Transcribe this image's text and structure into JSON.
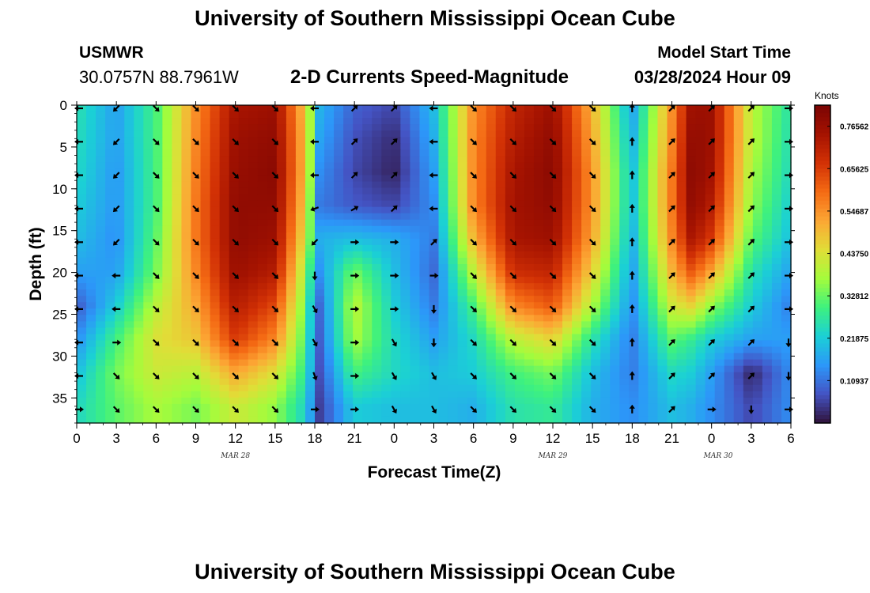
{
  "header": {
    "title": "University of Southern Mississippi Ocean Cube",
    "station": "USMWR",
    "coords": "30.0757N  88.7961W",
    "subtitle": "2-D Currents Speed-Magnitude",
    "start_label": "Model Start Time",
    "start_value": "03/28/2024 Hour 09"
  },
  "footer": {
    "title": "University of Southern Mississippi Ocean Cube"
  },
  "colors": {
    "scale": [
      "#30123b",
      "#4454c4",
      "#2c97f9",
      "#1bd0d5",
      "#3ef17e",
      "#a4fc3c",
      "#e1dd37",
      "#fca634",
      "#f46a14",
      "#d23105",
      "#a51301",
      "#7a0403"
    ]
  },
  "chart_data": {
    "type": "heatmap",
    "title": "2-D Currents Speed-Magnitude",
    "xlabel": "Forecast Time(Z)",
    "ylabel": "Depth (ft)",
    "x_ticks": [
      "0",
      "3",
      "6",
      "9",
      "12",
      "15",
      "18",
      "21",
      "0",
      "3",
      "6",
      "9",
      "12",
      "15",
      "18",
      "21",
      "0",
      "3",
      "6"
    ],
    "x_dates": [
      "MAR 28",
      "MAR 29",
      "MAR 30"
    ],
    "y_ticks": [
      "0",
      "5",
      "10",
      "15",
      "20",
      "25",
      "30",
      "35"
    ],
    "x_range": [
      0,
      54
    ],
    "y_range": [
      0,
      38
    ],
    "colorbar": {
      "title": "Knots",
      "range": [
        0,
        0.82
      ],
      "labels": [
        "0.76562",
        "0.65625",
        "0.54687",
        "0.43750",
        "0.32812",
        "0.21875",
        "0.10937"
      ]
    },
    "depths": [
      0,
      4,
      8,
      12,
      16,
      20,
      24,
      28,
      32,
      36
    ],
    "times": [
      0,
      3,
      6,
      9,
      12,
      15,
      17.5,
      18,
      21,
      24,
      27,
      30,
      33,
      36,
      39,
      42,
      45,
      46.5,
      48,
      51,
      54
    ],
    "speed": [
      [
        0.26,
        0.16,
        0.3,
        0.55,
        0.74,
        0.76,
        0.45,
        0.2,
        0.09,
        0.06,
        0.2,
        0.55,
        0.7,
        0.76,
        0.5,
        0.16,
        0.55,
        0.76,
        0.76,
        0.4,
        0.26
      ],
      [
        0.25,
        0.16,
        0.3,
        0.56,
        0.76,
        0.78,
        0.46,
        0.18,
        0.07,
        0.03,
        0.18,
        0.56,
        0.72,
        0.78,
        0.52,
        0.18,
        0.56,
        0.78,
        0.76,
        0.4,
        0.25
      ],
      [
        0.24,
        0.15,
        0.3,
        0.57,
        0.77,
        0.79,
        0.46,
        0.15,
        0.06,
        0.02,
        0.16,
        0.56,
        0.74,
        0.79,
        0.54,
        0.2,
        0.58,
        0.79,
        0.75,
        0.38,
        0.24
      ],
      [
        0.22,
        0.15,
        0.3,
        0.58,
        0.78,
        0.78,
        0.44,
        0.12,
        0.08,
        0.06,
        0.14,
        0.56,
        0.75,
        0.78,
        0.54,
        0.2,
        0.58,
        0.78,
        0.72,
        0.36,
        0.22
      ],
      [
        0.2,
        0.14,
        0.32,
        0.58,
        0.78,
        0.76,
        0.4,
        0.18,
        0.2,
        0.18,
        0.12,
        0.5,
        0.74,
        0.76,
        0.52,
        0.18,
        0.56,
        0.74,
        0.66,
        0.32,
        0.2
      ],
      [
        0.16,
        0.16,
        0.34,
        0.56,
        0.76,
        0.72,
        0.34,
        0.12,
        0.34,
        0.2,
        0.1,
        0.4,
        0.68,
        0.7,
        0.46,
        0.16,
        0.5,
        0.62,
        0.52,
        0.26,
        0.16
      ],
      [
        0.08,
        0.22,
        0.4,
        0.52,
        0.72,
        0.64,
        0.3,
        0.06,
        0.4,
        0.22,
        0.12,
        0.3,
        0.56,
        0.62,
        0.38,
        0.14,
        0.42,
        0.46,
        0.36,
        0.22,
        0.12
      ],
      [
        0.14,
        0.3,
        0.44,
        0.48,
        0.66,
        0.56,
        0.28,
        0.05,
        0.38,
        0.24,
        0.16,
        0.24,
        0.4,
        0.46,
        0.26,
        0.12,
        0.32,
        0.28,
        0.22,
        0.16,
        0.16
      ],
      [
        0.2,
        0.34,
        0.42,
        0.4,
        0.52,
        0.44,
        0.26,
        0.04,
        0.3,
        0.24,
        0.2,
        0.22,
        0.3,
        0.34,
        0.2,
        0.12,
        0.24,
        0.22,
        0.16,
        0.02,
        0.14
      ],
      [
        0.24,
        0.32,
        0.38,
        0.34,
        0.42,
        0.36,
        0.22,
        0.03,
        0.22,
        0.2,
        0.2,
        0.18,
        0.26,
        0.28,
        0.18,
        0.14,
        0.2,
        0.18,
        0.14,
        0.06,
        0.14
      ]
    ],
    "arrow_times": [
      0,
      3,
      6,
      9,
      12,
      15,
      18,
      21,
      24,
      27,
      30,
      33,
      36,
      39,
      42,
      45,
      48,
      51,
      54
    ],
    "arrow_depths": [
      0,
      4,
      8,
      12,
      16,
      20,
      24,
      28,
      32,
      36
    ],
    "arrow_dirs_deg": [
      [
        180,
        225,
        315,
        315,
        315,
        315,
        180,
        45,
        45,
        180,
        315,
        315,
        315,
        315,
        90,
        45,
        45,
        45,
        0
      ],
      [
        180,
        225,
        315,
        315,
        315,
        315,
        180,
        45,
        45,
        180,
        315,
        315,
        315,
        315,
        90,
        45,
        45,
        45,
        0
      ],
      [
        180,
        225,
        315,
        315,
        315,
        315,
        180,
        45,
        45,
        180,
        315,
        315,
        315,
        315,
        90,
        45,
        45,
        45,
        0
      ],
      [
        180,
        225,
        315,
        315,
        315,
        315,
        200,
        30,
        45,
        180,
        315,
        315,
        315,
        315,
        90,
        45,
        45,
        45,
        0
      ],
      [
        180,
        225,
        315,
        315,
        315,
        315,
        225,
        0,
        0,
        45,
        315,
        315,
        315,
        315,
        90,
        45,
        45,
        45,
        0
      ],
      [
        180,
        180,
        315,
        315,
        315,
        315,
        270,
        0,
        0,
        0,
        315,
        315,
        315,
        315,
        90,
        45,
        45,
        45,
        0
      ],
      [
        180,
        180,
        315,
        315,
        315,
        315,
        300,
        0,
        0,
        270,
        315,
        315,
        315,
        315,
        90,
        45,
        45,
        45,
        0
      ],
      [
        180,
        0,
        315,
        315,
        315,
        315,
        300,
        0,
        300,
        270,
        315,
        315,
        315,
        315,
        90,
        45,
        45,
        45,
        270
      ],
      [
        180,
        315,
        315,
        315,
        315,
        315,
        290,
        0,
        300,
        300,
        315,
        315,
        315,
        315,
        90,
        45,
        45,
        45,
        270
      ],
      [
        0,
        315,
        315,
        315,
        315,
        315,
        0,
        0,
        300,
        300,
        315,
        315,
        315,
        315,
        90,
        45,
        0,
        270,
        0
      ]
    ]
  }
}
